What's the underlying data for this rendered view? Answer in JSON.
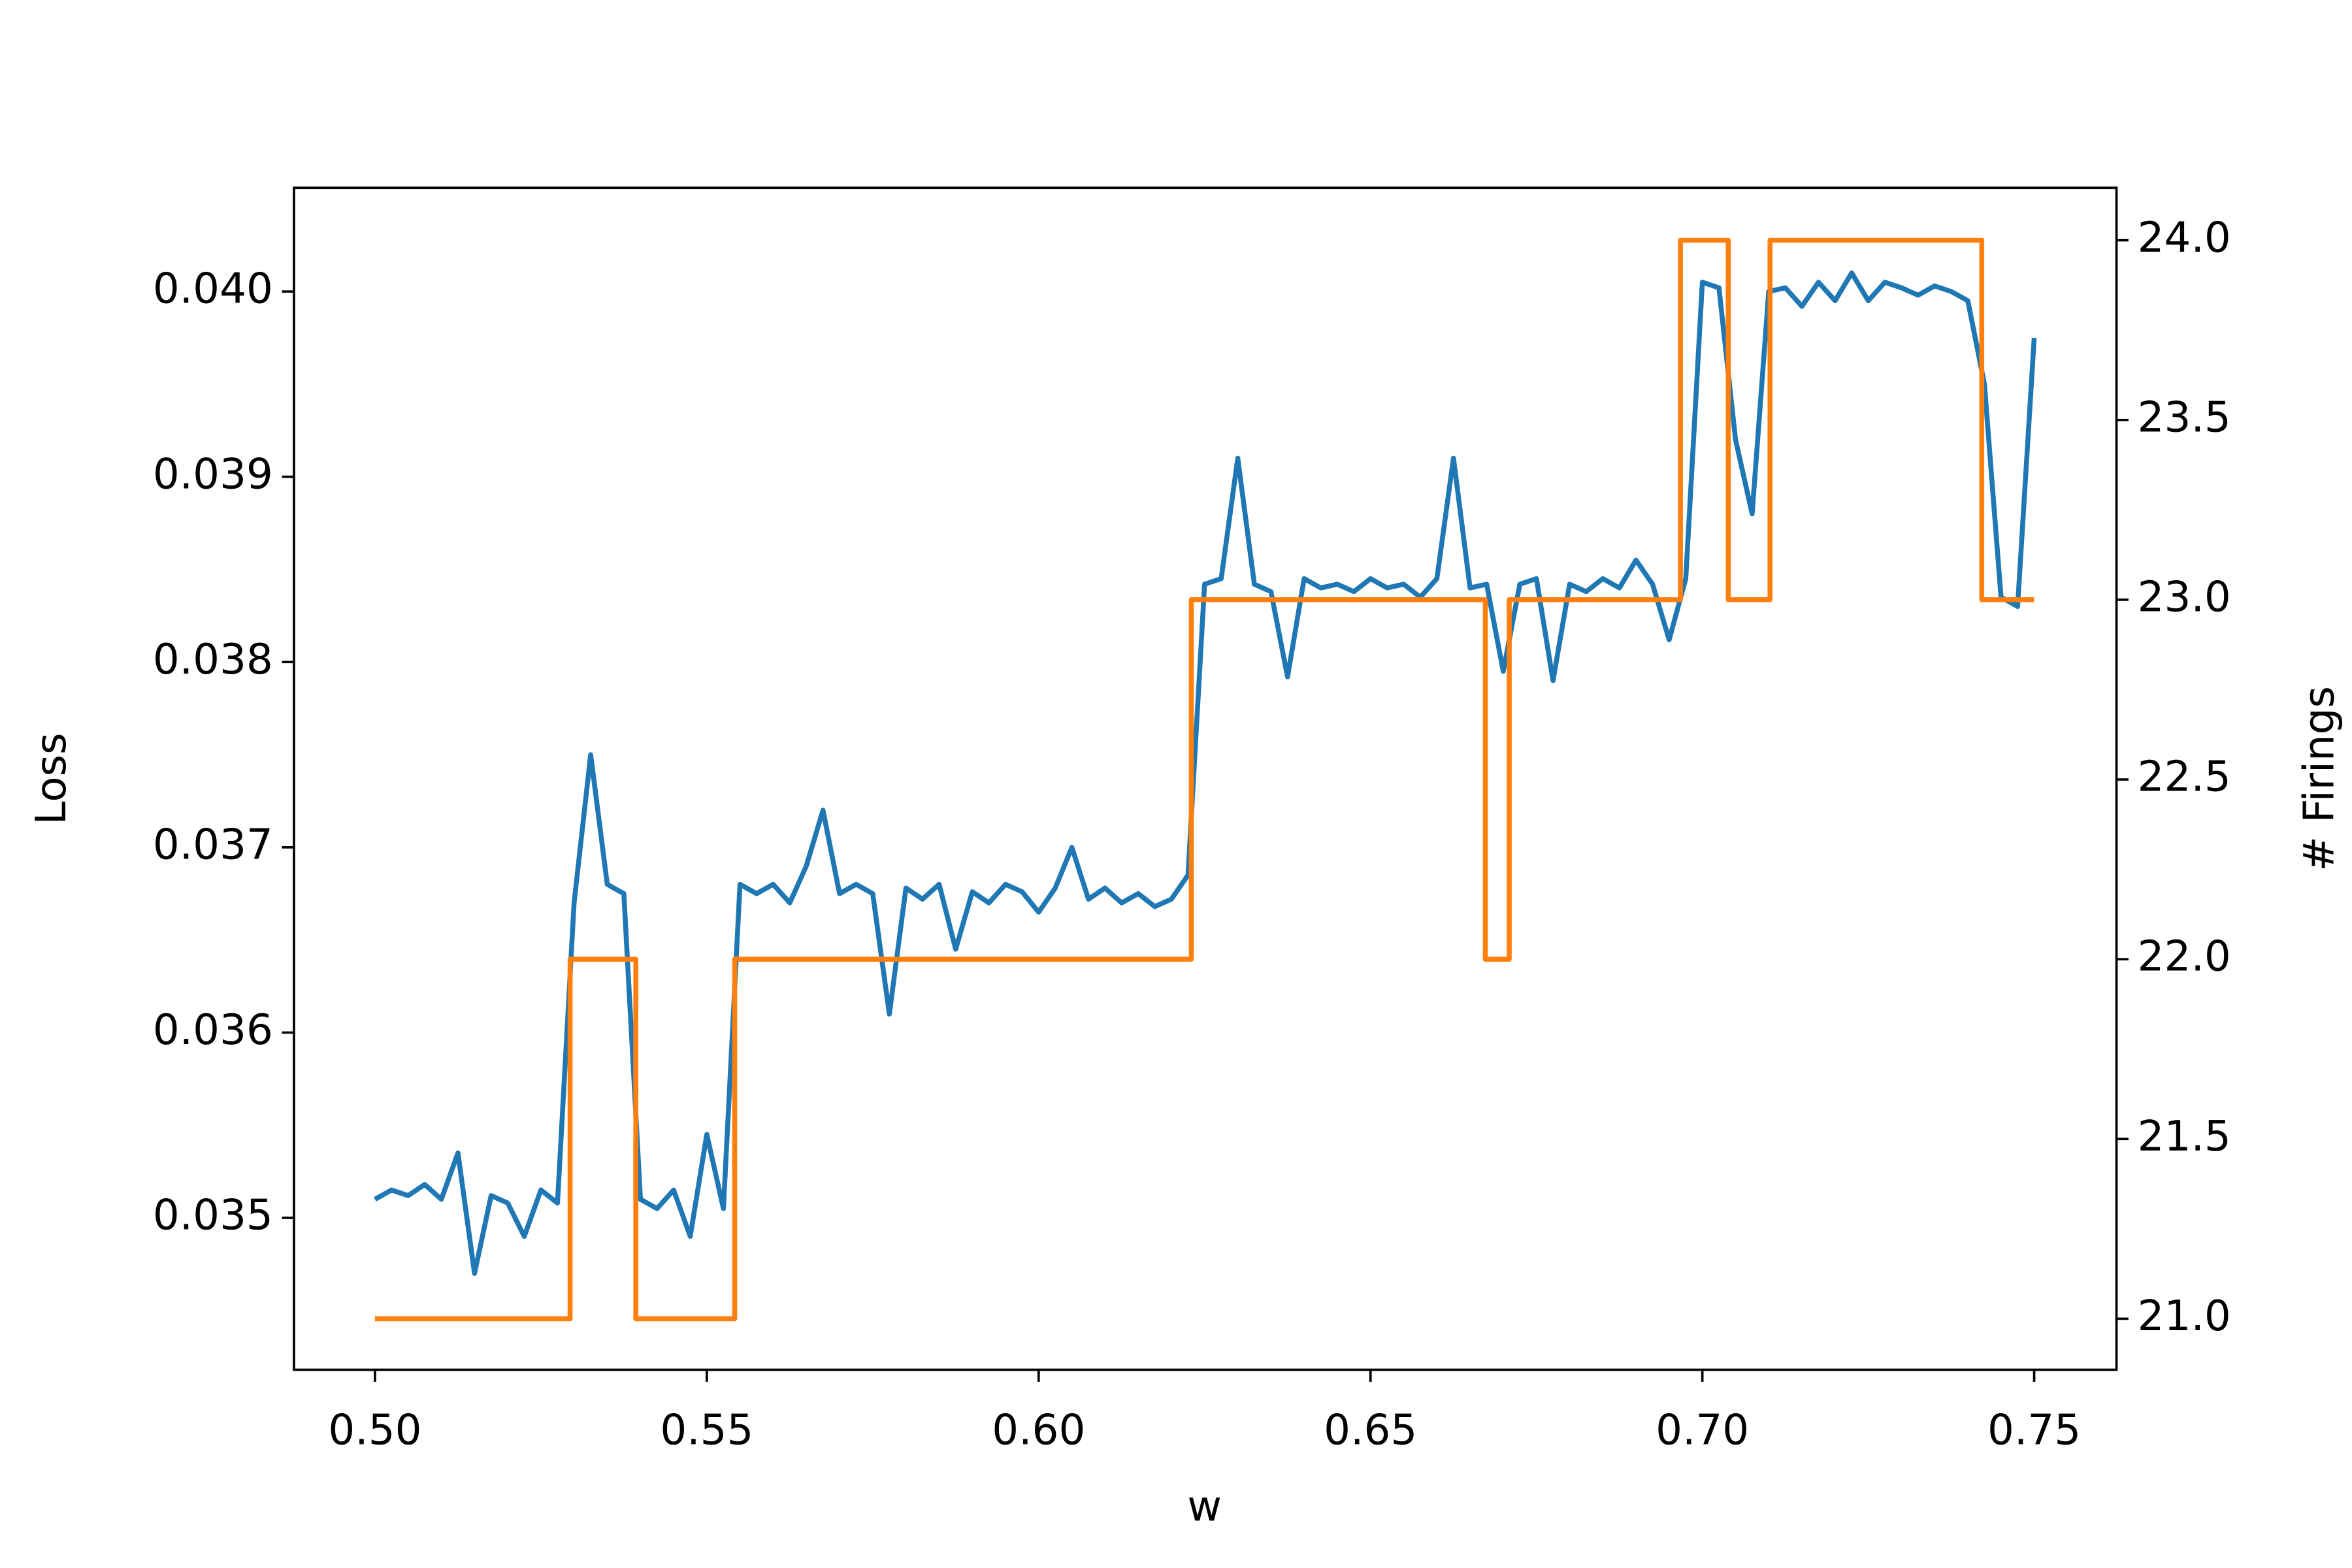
{
  "chart_data": {
    "type": "line",
    "xlabel": "w",
    "ylabel": "Loss",
    "y2label": "# Firings",
    "xlim": [
      0.4878,
      0.7624
    ],
    "xticks": [
      {
        "value": 0.5,
        "label": "0.50"
      },
      0.55,
      {
        "value": 0.6,
        "label": "0.60"
      },
      0.65,
      {
        "value": 0.7,
        "label": "0.70"
      },
      0.75
    ],
    "ylim": [
      0.03418,
      0.04056
    ],
    "yticks": [
      0.035,
      0.036,
      0.037,
      0.038,
      0.039,
      {
        "value": 0.04,
        "label": "0.040"
      }
    ],
    "y2lim": [
      20.858,
      24.146
    ],
    "y2ticks": [
      {
        "value": 21,
        "label": "21.0"
      },
      21.5,
      {
        "value": 22,
        "label": "22.0"
      },
      22.5,
      {
        "value": 23,
        "label": "23.0"
      },
      23.5,
      {
        "value": 24,
        "label": "24.0"
      }
    ],
    "series": [
      {
        "color": "#1f77b4",
        "x": [
          0.5,
          0.5025,
          0.505,
          0.5075,
          0.51,
          0.5125,
          0.515,
          0.5175,
          0.52,
          0.5225,
          0.525,
          0.5275,
          0.53,
          0.5325,
          0.535,
          0.5375,
          0.54,
          0.5425,
          0.545,
          0.5475,
          0.55,
          0.5525,
          0.555,
          0.5575,
          0.56,
          0.5625,
          0.565,
          0.5675,
          0.57,
          0.5725,
          0.575,
          0.5775,
          0.58,
          0.5825,
          0.585,
          0.5875,
          0.59,
          0.5925,
          0.595,
          0.5975,
          0.6,
          0.6025,
          0.605,
          0.6075,
          0.61,
          0.6125,
          0.615,
          0.6175,
          0.62,
          0.6225,
          0.625,
          0.6275,
          0.63,
          0.6325,
          0.635,
          0.6375,
          0.64,
          0.6425,
          0.645,
          0.6475,
          0.65,
          0.6525,
          0.655,
          0.6575,
          0.66,
          0.6625,
          0.665,
          0.6675,
          0.67,
          0.6725,
          0.675,
          0.6775,
          0.68,
          0.6825,
          0.685,
          0.6875,
          0.69,
          0.6925,
          0.695,
          0.6975,
          0.7,
          0.7025,
          0.705,
          0.7075,
          0.71,
          0.7125,
          0.715,
          0.7175,
          0.72,
          0.7225,
          0.725,
          0.7275,
          0.73,
          0.7325,
          0.735,
          0.7375,
          0.74,
          0.7425,
          0.745,
          0.7475,
          0.75
        ],
        "values": [
          0.0351,
          0.03515,
          0.03512,
          0.03518,
          0.0351,
          0.03535,
          0.0347,
          0.03512,
          0.03508,
          0.0349,
          0.03515,
          0.03508,
          0.0367,
          0.0375,
          0.0368,
          0.03675,
          0.0351,
          0.03505,
          0.03515,
          0.0349,
          0.03545,
          0.03505,
          0.0368,
          0.03675,
          0.0368,
          0.0367,
          0.0369,
          0.0372,
          0.03675,
          0.0368,
          0.03675,
          0.0361,
          0.03678,
          0.03672,
          0.0368,
          0.03645,
          0.03676,
          0.0367,
          0.0368,
          0.03676,
          0.03665,
          0.03678,
          0.037,
          0.03672,
          0.03678,
          0.0367,
          0.03675,
          0.03668,
          0.03672,
          0.03685,
          0.03842,
          0.03845,
          0.0391,
          0.03842,
          0.03838,
          0.03792,
          0.03845,
          0.0384,
          0.03842,
          0.03838,
          0.03845,
          0.0384,
          0.03842,
          0.03835,
          0.03845,
          0.0391,
          0.0384,
          0.03842,
          0.03795,
          0.03842,
          0.03845,
          0.0379,
          0.03842,
          0.03838,
          0.03845,
          0.0384,
          0.03855,
          0.03842,
          0.03812,
          0.03845,
          0.04005,
          0.04002,
          0.0392,
          0.0388,
          0.04,
          0.04002,
          0.03992,
          0.04005,
          0.03995,
          0.0401,
          0.03995,
          0.04005,
          0.04002,
          0.03998,
          0.04003,
          0.04,
          0.03995,
          0.0395,
          0.03835,
          0.0383,
          0.03975
        ]
      },
      {
        "color": "#ff7f0e",
        "axis": "y2",
        "x": [
          0.5,
          0.5294,
          0.5294,
          0.5393,
          0.5393,
          0.5542,
          0.5542,
          0.623,
          0.623,
          0.6673,
          0.6673,
          0.6709,
          0.6709,
          0.6967,
          0.6967,
          0.7039,
          0.7039,
          0.7102,
          0.7102,
          0.7421,
          0.7421,
          0.75
        ],
        "values": [
          21,
          21,
          22,
          22,
          21,
          21,
          22,
          22,
          23,
          23,
          22,
          22,
          23,
          23,
          24,
          24,
          23,
          23,
          24,
          24,
          23,
          23
        ]
      }
    ]
  }
}
